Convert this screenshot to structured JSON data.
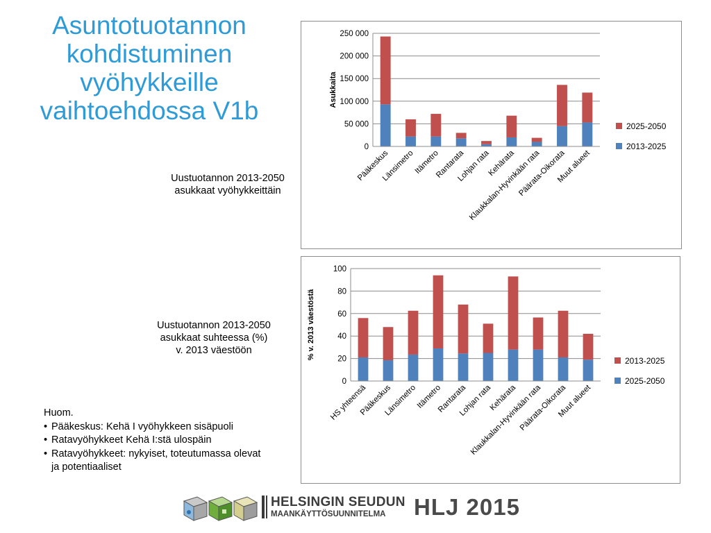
{
  "title": "Asuntotuotannon kohdistuminen vyöhykkeille vaihtoehdossa V1b",
  "captions": {
    "chart1": [
      "Uustuotannon 2013-2050",
      "asukkaat vyöhykkeittäin"
    ],
    "chart2": [
      "Uustuotannon 2013-2050",
      "asukkaat suhteessa (%)",
      "v. 2013 väestöön"
    ]
  },
  "note": {
    "heading": "Huom.",
    "items": [
      "Pääkeskus: Kehä I vyöhykkeen sisäpuoli",
      "Ratavyöhykkeet Kehä I:stä ulospäin",
      "Ratavyöhykkeet: nykyiset, toteutumassa olevat"
    ],
    "continuation": "ja potentiaaliset",
    "bullet": "•"
  },
  "footer": {
    "org_line1": "HELSINGIN SEUDUN",
    "org_line2": "MAANKÄYTTÖSUUNNITELMA",
    "brand": "HLJ 2015",
    "logo_icons": [
      "map-tile-icon",
      "green-map-tile-icon",
      "cube-icon"
    ]
  },
  "colors": {
    "blue": "#4f81bd",
    "red": "#c0504d",
    "title": "#2e9ad6"
  },
  "chart_data": [
    {
      "type": "bar",
      "stacked": true,
      "ylabel": "Asukkaita",
      "xlabel": "",
      "ylim": [
        0,
        250000
      ],
      "yticks": [
        0,
        50000,
        100000,
        150000,
        200000,
        250000
      ],
      "ytick_labels": [
        "0",
        "50 000",
        "100 000",
        "150 000",
        "200 000",
        "250 000"
      ],
      "categories": [
        "Pääkeskus",
        "Länsimetro",
        "Itämetro",
        "Rantarata",
        "Lohjan rata",
        "Kehärata",
        "Klaukkalan-Hyvinkään rata",
        "Päärata-Oikorata",
        "Muut alueet"
      ],
      "series": [
        {
          "name": "2013-2025",
          "color": "#4f81bd",
          "values": [
            93000,
            22000,
            22000,
            18000,
            5000,
            20000,
            10000,
            45000,
            53000
          ]
        },
        {
          "name": "2025-2050",
          "color": "#c0504d",
          "values": [
            150000,
            38000,
            50000,
            12000,
            7000,
            48000,
            9000,
            91000,
            66000
          ]
        }
      ],
      "legend": "right",
      "grid": true
    },
    {
      "type": "bar",
      "stacked": true,
      "ylabel": "% v. 2013 väestöstä",
      "xlabel": "",
      "ylim": [
        0,
        100
      ],
      "yticks": [
        0,
        20,
        40,
        60,
        80,
        100
      ],
      "ytick_labels": [
        "0",
        "20",
        "40",
        "60",
        "80",
        "100"
      ],
      "categories": [
        "HS yhteensä",
        "Pääkeskus",
        "Länsimetro",
        "Itämetro",
        "Rantarata",
        "Lohjan rata",
        "Kehärata",
        "Klaukkalan-Hyvinkään rata",
        "Päärata-Oikorata",
        "Muut alueet"
      ],
      "series": [
        {
          "name": "2025-2050",
          "color": "#4f81bd",
          "values": [
            21,
            18.5,
            23.5,
            29,
            24.5,
            25,
            28,
            28,
            21,
            19
          ]
        },
        {
          "name": "2013-2025",
          "color": "#c0504d",
          "values": [
            35,
            29.5,
            39,
            65,
            43.5,
            26,
            65,
            28.5,
            41.5,
            23
          ]
        }
      ],
      "legend": "right",
      "grid": true
    }
  ]
}
